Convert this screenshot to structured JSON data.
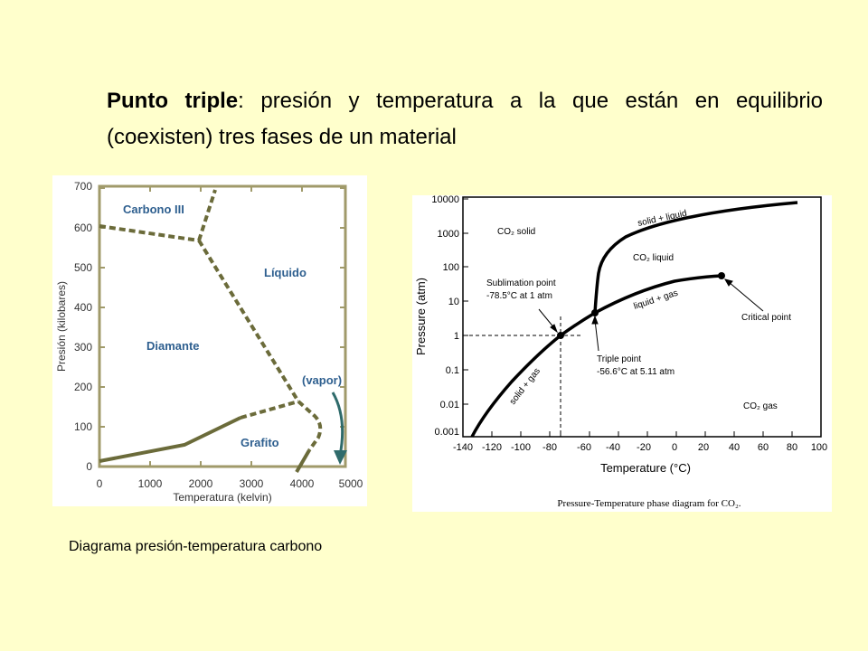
{
  "heading": {
    "term": "Punto triple",
    "definition": ": presión y temperatura a la que están en equilibrio (coexisten) tres fases de un material"
  },
  "carbon_diagram": {
    "caption": "Diagrama presión-temperatura carbono",
    "x_label": "Temperatura (kelvin)",
    "y_label": "Presión (kilobares)",
    "x_ticks": [
      "0",
      "1000",
      "2000",
      "3000",
      "4000",
      "5000"
    ],
    "y_ticks": [
      "0",
      "100",
      "200",
      "300",
      "400",
      "500",
      "600",
      "700"
    ],
    "regions": {
      "carbono3": "Carbono III",
      "liquido": "Líquido",
      "diamante": "Diamante",
      "grafito": "Grafito",
      "vapor": "(vapor)"
    },
    "colors": {
      "boundary": "#6b6b3a",
      "region_label": "#2e5f8f",
      "arrow": "#2f6b6b",
      "frame": "#a09a6a"
    }
  },
  "co2_diagram": {
    "x_label": "Temperature (°C)",
    "y_label": "Pressure (atm)",
    "x_ticks": [
      "-140",
      "-120",
      "-100",
      "-80",
      "-60",
      "-40",
      "-20",
      "0",
      "20",
      "40",
      "60",
      "80",
      "100"
    ],
    "y_ticks": [
      "10000",
      "1000",
      "100",
      "10",
      "1",
      "0.1",
      "0.01",
      "0.001"
    ],
    "regions": {
      "solid": "CO₂ solid",
      "liquid": "CO₂ liquid",
      "gas": "CO₂ gas",
      "solid_liquid": "solid + liquid",
      "liquid_gas": "liquid + gas",
      "solid_gas": "solid + gas"
    },
    "annotations": {
      "sublimation_title": "Sublimation point",
      "sublimation_value": "-78.5°C at 1 atm",
      "triple_title": "Triple point",
      "triple_value": "-56.6°C at 5.11 atm",
      "critical": "Critical point"
    },
    "caption": "Pressure-Temperature phase diagram for CO₂."
  }
}
